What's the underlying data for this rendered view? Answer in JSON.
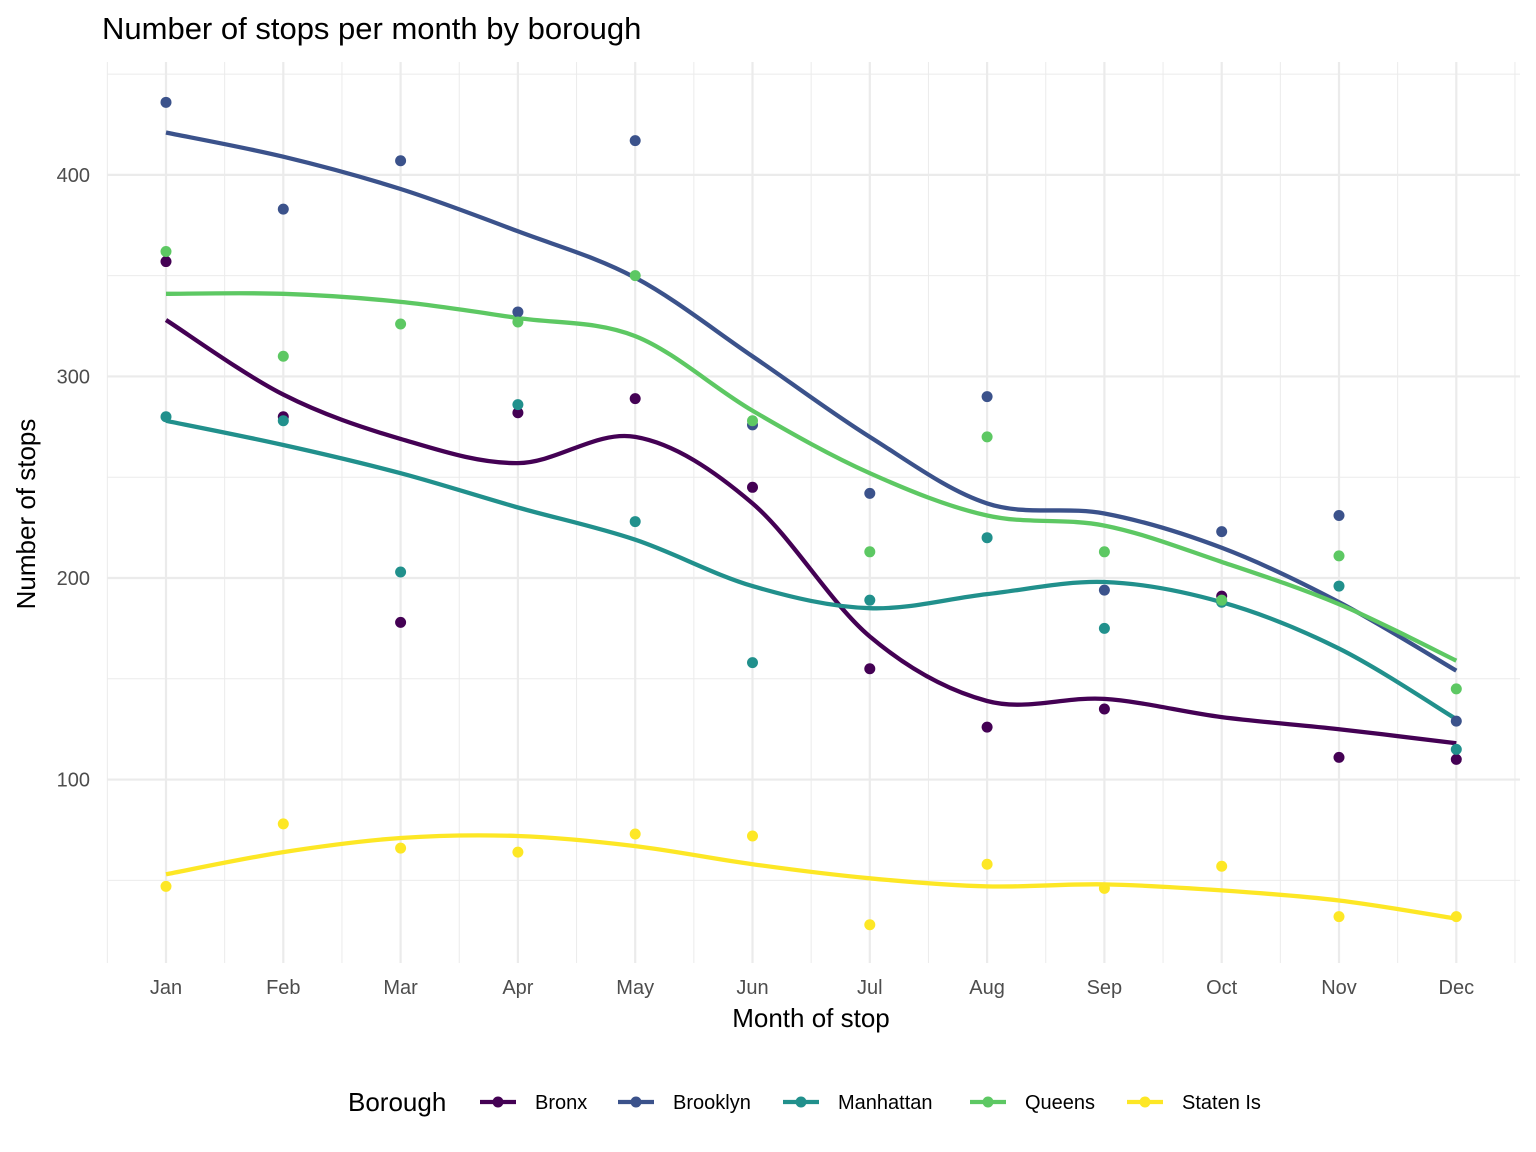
{
  "chart_data": {
    "type": "scatter",
    "title": "Number of stops per month by borough",
    "xlabel": "Month of stop",
    "ylabel": "Number of stops",
    "categories": [
      "Jan",
      "Feb",
      "Mar",
      "Apr",
      "May",
      "Jun",
      "Jul",
      "Aug",
      "Sep",
      "Oct",
      "Nov",
      "Dec"
    ],
    "yticks": [
      100,
      200,
      300,
      400
    ],
    "ylim": [
      9,
      456
    ],
    "grid": true,
    "legend": {
      "title": "Borough",
      "position": "bottom"
    },
    "series": [
      {
        "name": "Bronx",
        "color": "#440154",
        "points": [
          357,
          280,
          178,
          282,
          289,
          245,
          155,
          126,
          135,
          191,
          111,
          110
        ],
        "smooth": [
          328,
          291,
          269,
          257,
          270,
          237,
          171,
          139,
          140,
          131,
          125,
          118
        ]
      },
      {
        "name": "Brooklyn",
        "color": "#3B528B",
        "points": [
          436,
          383,
          407,
          332,
          417,
          276,
          242,
          290,
          194,
          223,
          231,
          129
        ],
        "smooth": [
          421,
          409,
          393,
          372,
          349,
          310,
          270,
          237,
          232,
          215,
          188,
          154
        ]
      },
      {
        "name": "Manhattan",
        "color": "#21908C",
        "points": [
          280,
          278,
          203,
          286,
          228,
          158,
          189,
          220,
          175,
          188,
          196,
          115
        ],
        "smooth": [
          278,
          266,
          252,
          235,
          219,
          196,
          185,
          192,
          198,
          188,
          165,
          130
        ]
      },
      {
        "name": "Queens",
        "color": "#5DC863",
        "points": [
          362,
          310,
          326,
          327,
          350,
          278,
          213,
          270,
          213,
          189,
          211,
          145
        ],
        "smooth": [
          341,
          341,
          337,
          329,
          320,
          283,
          252,
          231,
          226,
          208,
          187,
          159
        ]
      },
      {
        "name": "Staten Is",
        "color": "#FDE725",
        "points": [
          47,
          78,
          66,
          64,
          73,
          72,
          28,
          58,
          46,
          57,
          32,
          32
        ],
        "smooth": [
          53,
          64,
          71,
          72,
          67,
          58,
          51,
          47,
          48,
          45,
          40,
          31
        ]
      }
    ]
  }
}
